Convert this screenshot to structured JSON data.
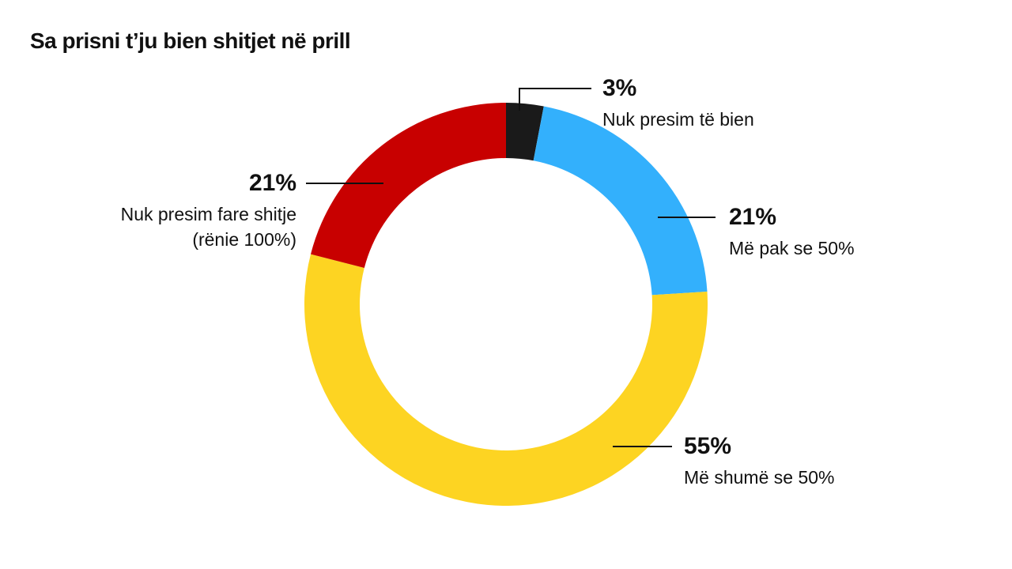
{
  "chart_data": {
    "type": "donut",
    "title": "Sa prisni t’ju bien shitjet në prill",
    "categories": [
      "Nuk presim të bien",
      "Më pak se 50%",
      "Më shumë se 50%",
      "Nuk presim fare shitje (rënie 100%)"
    ],
    "values": [
      3,
      21,
      55,
      21
    ],
    "value_labels": [
      "3%",
      "21%",
      "55%",
      "21%"
    ],
    "colors": [
      "#1a1a1a",
      "#33b0fc",
      "#fdd422",
      "#c80000"
    ]
  }
}
